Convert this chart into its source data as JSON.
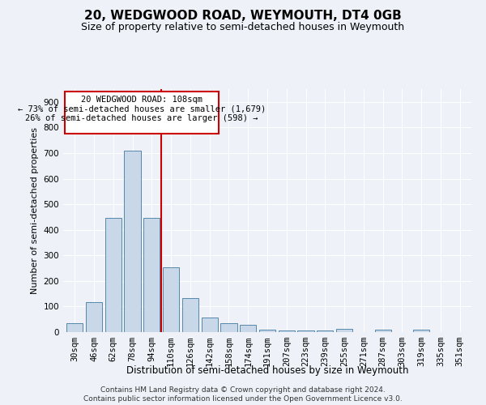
{
  "title": "20, WEDGWOOD ROAD, WEYMOUTH, DT4 0GB",
  "subtitle": "Size of property relative to semi-detached houses in Weymouth",
  "xlabel": "Distribution of semi-detached houses by size in Weymouth",
  "ylabel": "Number of semi-detached properties",
  "bar_color": "#c8d8e8",
  "bar_edge_color": "#5588aa",
  "categories": [
    "30sqm",
    "46sqm",
    "62sqm",
    "78sqm",
    "94sqm",
    "110sqm",
    "126sqm",
    "142sqm",
    "158sqm",
    "174sqm",
    "191sqm",
    "207sqm",
    "223sqm",
    "239sqm",
    "255sqm",
    "271sqm",
    "287sqm",
    "303sqm",
    "319sqm",
    "335sqm",
    "351sqm"
  ],
  "values": [
    35,
    118,
    445,
    710,
    445,
    253,
    133,
    58,
    35,
    27,
    10,
    7,
    7,
    7,
    12,
    0,
    10,
    0,
    10,
    0,
    0
  ],
  "red_line_x": 4.5,
  "annotation_title": "20 WEDGWOOD ROAD: 108sqm",
  "annotation_line1": "← 73% of semi-detached houses are smaller (1,679)",
  "annotation_line2": "26% of semi-detached houses are larger (598) →",
  "ylim": [
    0,
    950
  ],
  "yticks": [
    0,
    100,
    200,
    300,
    400,
    500,
    600,
    700,
    800,
    900
  ],
  "footer1": "Contains HM Land Registry data © Crown copyright and database right 2024.",
  "footer2": "Contains public sector information licensed under the Open Government Licence v3.0.",
  "background_color": "#eef2f8",
  "plot_bg_color": "#eef2f8",
  "grid_color": "#ffffff",
  "annotation_box_color": "#ffffff",
  "annotation_box_edge": "#cc0000",
  "red_line_color": "#cc0000",
  "title_fontsize": 11,
  "subtitle_fontsize": 9,
  "tick_fontsize": 7.5,
  "ylabel_fontsize": 8,
  "xlabel_fontsize": 8.5,
  "annotation_fontsize": 7.5,
  "footer_fontsize": 6.5
}
